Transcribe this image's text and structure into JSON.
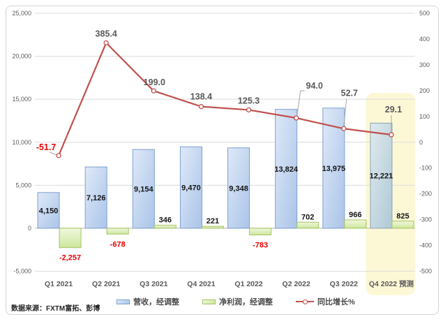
{
  "source_note": "数据来源：FXTM富拓、彭博",
  "chart_data": {
    "type": "combo",
    "grid": true,
    "legend_position": "bottom",
    "categories": [
      "Q1 2021",
      "Q2 2021",
      "Q3 2021",
      "Q4 2021",
      "Q1 2022",
      "Q2 2022",
      "Q3 2022",
      "Q4 2022 预测"
    ],
    "forecast_index": 7,
    "series": [
      {
        "name": "营收，经调整",
        "type": "bar",
        "axis": "left",
        "values": [
          4150,
          7126,
          9154,
          9470,
          9348,
          13824,
          13975,
          12221
        ],
        "labels": [
          "4,150",
          "7,126",
          "9,154",
          "9,470",
          "9,348",
          "13,824",
          "13,975",
          "12,221"
        ],
        "fill_from": "#dfe9f8",
        "fill_to": "#aac4e8",
        "border": "#7da0cf",
        "forecast_fill_from": "#e0eaed",
        "forecast_fill_to": "#afc9d6",
        "forecast_border": "#87a3b6"
      },
      {
        "name": "净利润，经调整",
        "type": "bar",
        "axis": "left",
        "values": [
          -2257,
          -678,
          346,
          221,
          -783,
          702,
          966,
          825
        ],
        "labels": [
          "-2,257",
          "-678",
          "346",
          "221",
          "-783",
          "702",
          "966",
          "825"
        ],
        "fill_from": "#f1f8de",
        "fill_to": "#cde79c",
        "border": "#a6c361"
      },
      {
        "name": "同比增长%",
        "type": "line",
        "axis": "right",
        "values": [
          -51.7,
          385.4,
          199.0,
          138.4,
          125.3,
          94.0,
          52.7,
          29.1
        ],
        "labels": [
          "-51.7",
          "385.4",
          "199.0",
          "138.4",
          "125.3",
          "94.0",
          "52.7",
          "29.1"
        ],
        "color": "#c0504d"
      }
    ],
    "left_axis": {
      "min": -5000,
      "max": 25000,
      "step": 5000,
      "tick_values": [
        25000,
        20000,
        15000,
        10000,
        5000,
        0,
        -5000
      ],
      "tick_labels": [
        "25,000",
        "20,000",
        "15,000",
        "10,000",
        "5,000",
        "0",
        "-5,000"
      ]
    },
    "right_axis": {
      "min": -500,
      "max": 500,
      "step": 100,
      "tick_values": [
        500,
        400,
        300,
        200,
        100,
        0,
        -100,
        -200,
        -300,
        -400,
        -500
      ],
      "tick_labels": [
        "500",
        "400",
        "300",
        "200",
        "100",
        "0",
        "-100",
        "-200",
        "-300",
        "-400",
        "-500"
      ]
    },
    "highlight": {
      "label": "Q4 2022 预测",
      "color": "#fcf8d6"
    },
    "colors": {
      "grid": "#dcdcdc",
      "axis_zero": "#b3b3b3",
      "tick_text": "#595959",
      "category_text": "#595959",
      "bar_label": "#141414",
      "negative_label": "#e80000",
      "line_label": "#595959",
      "leader": "#a6a6a6"
    }
  }
}
